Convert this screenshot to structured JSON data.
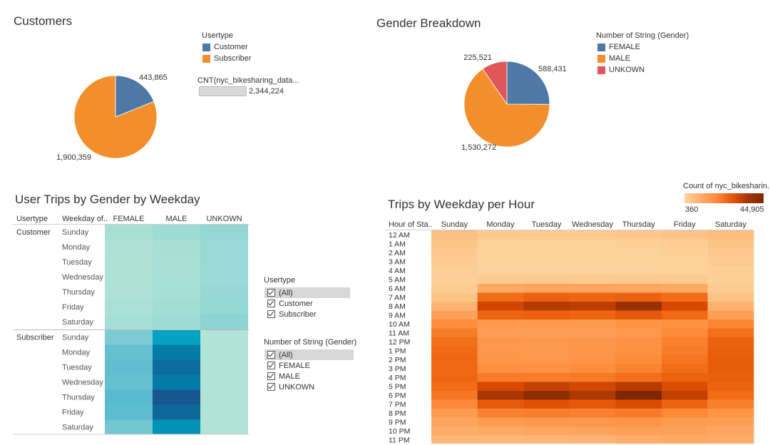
{
  "customers": {
    "title": "Customers",
    "legend_title": "Usertype",
    "legend": [
      {
        "label": "Customer",
        "color": "#4e79a7"
      },
      {
        "label": "Subscriber",
        "color": "#f28e2b"
      }
    ],
    "size_legend_title": "CNT(nyc_bikesharing_data...",
    "size_legend_value": "2,344,224"
  },
  "gender": {
    "title": "Gender Breakdown",
    "legend_title": "Number of String (Gender)",
    "legend": [
      {
        "label": "FEMALE",
        "color": "#4e79a7"
      },
      {
        "label": "MALE",
        "color": "#f28e2b"
      },
      {
        "label": "UNKOWN",
        "color": "#e15759"
      }
    ]
  },
  "trips_gender": {
    "title": "User Trips by Gender by Weekday",
    "headers": [
      "Usertype",
      "Weekday of..",
      "FEMALE",
      "MALE",
      "UNKOWN"
    ]
  },
  "trips_hour": {
    "title": "Trips by Weekday per Hour",
    "color_legend_title": "Count of nyc_bikesharin..",
    "color_min": "360",
    "color_max": "44,905",
    "row_header": "Hour of Sta.."
  },
  "filters": {
    "usertype": {
      "title": "Usertype",
      "options": [
        "(All)",
        "Customer",
        "Subscriber"
      ]
    },
    "gender": {
      "title": "Number of String (Gender)",
      "options": [
        "(All)",
        "FEMALE",
        "MALE",
        "UNKOWN"
      ]
    }
  },
  "chart_data": [
    {
      "type": "pie",
      "title": "Customers",
      "categories": [
        "Customer",
        "Subscriber"
      ],
      "values": [
        443865,
        1900359
      ],
      "value_labels": [
        "443,865",
        "1,900,359"
      ],
      "colors": [
        "#4e79a7",
        "#f28e2b"
      ]
    },
    {
      "type": "pie",
      "title": "Gender Breakdown",
      "categories": [
        "FEMALE",
        "MALE",
        "UNKOWN"
      ],
      "values": [
        588431,
        1530272,
        225521
      ],
      "value_labels": [
        "588,431",
        "1,530,272",
        "225,521"
      ],
      "colors": [
        "#4e79a7",
        "#f28e2b",
        "#e15759"
      ]
    },
    {
      "type": "heatmap",
      "title": "User Trips by Gender by Weekday",
      "columns": [
        "FEMALE",
        "MALE",
        "UNKOWN"
      ],
      "groups": [
        {
          "usertype": "Customer",
          "rows": [
            "Sunday",
            "Monday",
            "Tuesday",
            "Wednesday",
            "Thursday",
            "Friday",
            "Saturday"
          ],
          "values": [
            [
              13000,
              17000,
              24000
            ],
            [
              10000,
              13000,
              19000
            ],
            [
              9500,
              12500,
              19000
            ],
            [
              9000,
              12500,
              19500
            ],
            [
              10000,
              13500,
              21000
            ],
            [
              11000,
              15000,
              22500
            ],
            [
              13500,
              17500,
              27000
            ]
          ]
        },
        {
          "usertype": "Subscriber",
          "rows": [
            "Sunday",
            "Monday",
            "Tuesday",
            "Wednesday",
            "Thursday",
            "Friday",
            "Saturday"
          ],
          "values": [
            [
              39000,
              98000,
              8000
            ],
            [
              52000,
              128000,
              8000
            ],
            [
              55000,
              137000,
              8000
            ],
            [
              52000,
              128000,
              8000
            ],
            [
              60000,
              152000,
              8000
            ],
            [
              57000,
              141000,
              8000
            ],
            [
              44000,
              112000,
              8000
            ]
          ]
        }
      ]
    },
    {
      "type": "heatmap",
      "title": "Trips by Weekday per Hour",
      "columns": [
        "Sunday",
        "Monday",
        "Tuesday",
        "Wednesday",
        "Thursday",
        "Friday",
        "Saturday"
      ],
      "rows": [
        "12 AM",
        "1 AM",
        "2 AM",
        "3 AM",
        "4 AM",
        "5 AM",
        "6 AM",
        "7 AM",
        "8 AM",
        "9 AM",
        "10 AM",
        "11 AM",
        "12 PM",
        "1 PM",
        "2 PM",
        "3 PM",
        "4 PM",
        "5 PM",
        "6 PM",
        "7 PM",
        "8 PM",
        "9 PM",
        "10 PM",
        "11 PM"
      ],
      "range": [
        360,
        44905
      ],
      "values": [
        [
          5500,
          2500,
          2800,
          2700,
          3200,
          4000,
          6000
        ],
        [
          4200,
          1300,
          1300,
          1300,
          1600,
          2200,
          4500
        ],
        [
          3000,
          700,
          700,
          700,
          900,
          1400,
          3400
        ],
        [
          2200,
          450,
          450,
          450,
          550,
          900,
          2400
        ],
        [
          1500,
          500,
          500,
          500,
          550,
          800,
          1700
        ],
        [
          1300,
          2700,
          2900,
          3000,
          3000,
          2600,
          1400
        ],
        [
          2200,
          11000,
          12500,
          12000,
          11500,
          10500,
          2500
        ],
        [
          4200,
          27000,
          30000,
          29000,
          30000,
          27000,
          4500
        ],
        [
          8000,
          37000,
          40000,
          39000,
          42500,
          36000,
          8500
        ],
        [
          13000,
          29000,
          30000,
          29000,
          32000,
          28000,
          14000
        ],
        [
          19000,
          16000,
          15500,
          15500,
          17000,
          18000,
          21000
        ],
        [
          23500,
          14500,
          14000,
          14500,
          16000,
          19500,
          26500
        ],
        [
          26500,
          16000,
          15500,
          16000,
          17500,
          22000,
          30000
        ],
        [
          28000,
          16000,
          15500,
          16500,
          18000,
          23000,
          30500
        ],
        [
          28500,
          16500,
          16000,
          17000,
          19500,
          25000,
          31000
        ],
        [
          28500,
          18500,
          18000,
          19000,
          21500,
          27000,
          31000
        ],
        [
          28500,
          23500,
          23500,
          24000,
          26500,
          30000,
          30500
        ],
        [
          27500,
          36000,
          38000,
          36500,
          39500,
          35000,
          29500
        ],
        [
          24500,
          41000,
          43500,
          40500,
          44905,
          38500,
          27500
        ],
        [
          20000,
          31500,
          33500,
          32000,
          35000,
          29000,
          22500
        ],
        [
          15000,
          21500,
          22500,
          22000,
          23500,
          20000,
          17000
        ],
        [
          12000,
          15000,
          16000,
          16000,
          17000,
          15000,
          14000
        ],
        [
          9500,
          11000,
          12000,
          12500,
          13500,
          13500,
          12000
        ],
        [
          7000,
          7000,
          7500,
          8000,
          9500,
          11000,
          10000
        ]
      ]
    }
  ]
}
